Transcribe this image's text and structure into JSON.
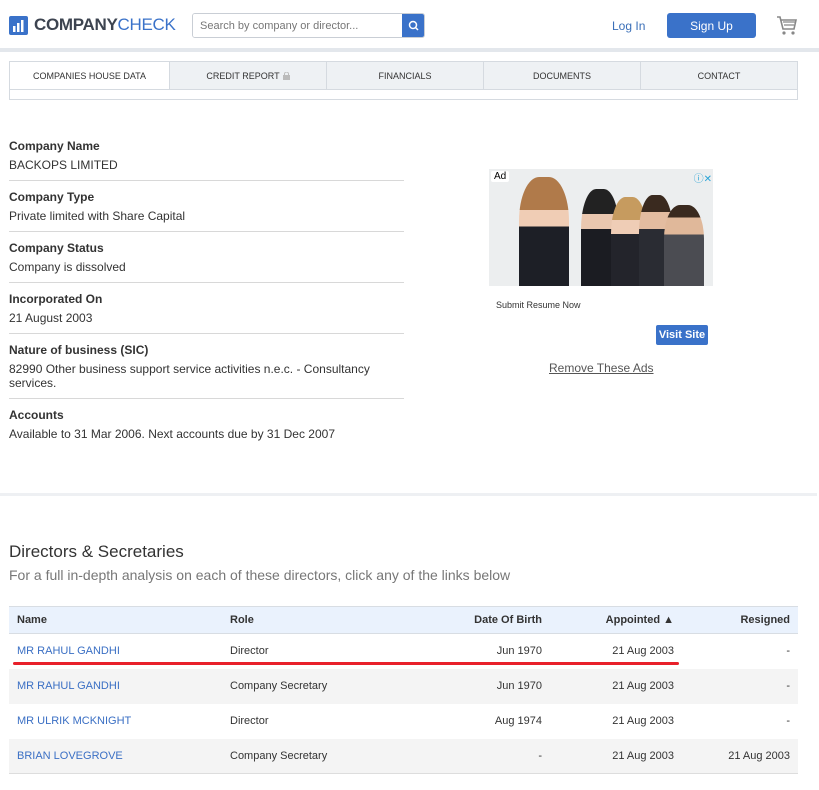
{
  "header": {
    "logo_bold": "COMPANY",
    "logo_light": "CHECK",
    "search_placeholder": "Search by company or director...",
    "login": "Log In",
    "signup": "Sign Up"
  },
  "tabs": [
    {
      "label": "COMPANIES HOUSE DATA",
      "active": true
    },
    {
      "label": "CREDIT REPORT",
      "locked": true
    },
    {
      "label": "FINANCIALS"
    },
    {
      "label": "DOCUMENTS"
    },
    {
      "label": "CONTACT"
    }
  ],
  "company": [
    {
      "label": "Company Name",
      "value": "BACKOPS LIMITED"
    },
    {
      "label": "Company Type",
      "value": "Private limited with Share Capital"
    },
    {
      "label": "Company Status",
      "value": "Company is dissolved"
    },
    {
      "label": "Incorporated On",
      "value": "21 August 2003"
    },
    {
      "label": "Nature of business (SIC)",
      "value": "82990 Other business support service activities n.e.c. - Consultancy services."
    },
    {
      "label": "Accounts",
      "value": "Available to 31 Mar 2006. Next accounts due by 31 Dec 2007"
    }
  ],
  "ad": {
    "tag": "Ad",
    "text": "Submit Resume Now",
    "button": "Visit Site",
    "remove": "Remove These Ads"
  },
  "directors": {
    "title": "Directors & Secretaries",
    "subtitle": "For a full in-depth analysis on each of these directors, click any of the links below",
    "columns": [
      "Name",
      "Role",
      "Date Of Birth",
      "Appointed ▲",
      "Resigned"
    ],
    "rows": [
      [
        "MR RAHUL GANDHI",
        "Director",
        "Jun 1970",
        "21 Aug 2003",
        "-"
      ],
      [
        "MR RAHUL GANDHI",
        "Company Secretary",
        "Jun 1970",
        "21 Aug 2003",
        "-"
      ],
      [
        "MR ULRIK MCKNIGHT",
        "Director",
        "Aug 1974",
        "21 Aug 2003",
        "-"
      ],
      [
        "BRIAN LOVEGROVE",
        "Company Secretary",
        "-",
        "21 Aug 2003",
        "21 Aug 2003"
      ]
    ]
  },
  "colors": {
    "brand": "#3a72c9",
    "highlight": "#e8202a"
  }
}
